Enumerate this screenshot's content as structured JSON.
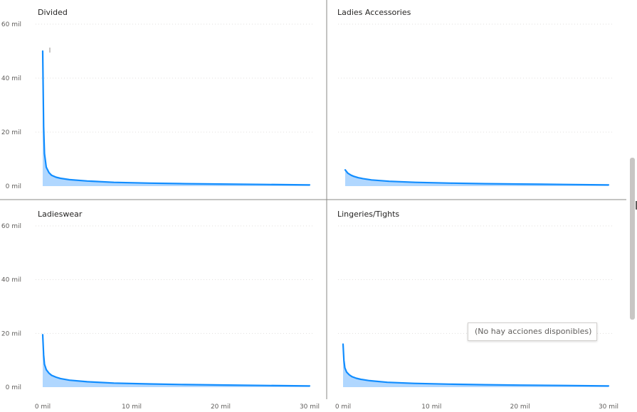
{
  "chart_data": [
    {
      "type": "area",
      "title": "Divided",
      "x_ticks": [
        "0 mil",
        "10 mil",
        "20 mil",
        "30 mil"
      ],
      "y_ticks": [
        "60 mil",
        "40 mil",
        "20 mil",
        "0 mil"
      ],
      "xlim": [
        0,
        30000
      ],
      "ylim": [
        0,
        60000
      ],
      "x": [
        0,
        100,
        200,
        400,
        700,
        1000,
        1500,
        2000,
        3000,
        5000,
        8000,
        12000,
        16000,
        20000,
        25000,
        30000
      ],
      "values": [
        50000,
        22000,
        12000,
        7000,
        5000,
        4000,
        3300,
        2900,
        2400,
        1900,
        1400,
        1100,
        900,
        750,
        600,
        450
      ]
    },
    {
      "type": "area",
      "title": "Ladies Accessories",
      "x_ticks": [
        "0 mil",
        "10 mil",
        "20 mil",
        "30 mil"
      ],
      "y_ticks": [
        "60 mil",
        "40 mil",
        "20 mil",
        "0 mil"
      ],
      "xlim": [
        0,
        30000
      ],
      "ylim": [
        0,
        60000
      ],
      "x": [
        0,
        300,
        700,
        1000,
        1500,
        2000,
        3000,
        5000,
        8000,
        12000,
        16000,
        20000,
        25000,
        30000
      ],
      "values": [
        6000,
        4800,
        4000,
        3600,
        3100,
        2800,
        2300,
        1800,
        1400,
        1100,
        900,
        750,
        600,
        450
      ]
    },
    {
      "type": "area",
      "title": "Ladieswear",
      "x_ticks": [
        "0 mil",
        "10 mil",
        "20 mil",
        "30 mil"
      ],
      "y_ticks": [
        "60 mil",
        "40 mil",
        "20 mil",
        "0 mil"
      ],
      "xlim": [
        0,
        30000
      ],
      "ylim": [
        0,
        60000
      ],
      "x": [
        0,
        100,
        200,
        400,
        700,
        1000,
        1500,
        2000,
        3000,
        5000,
        8000,
        12000,
        16000,
        20000,
        25000,
        30000
      ],
      "values": [
        19500,
        12000,
        8500,
        6500,
        5200,
        4400,
        3700,
        3200,
        2600,
        2000,
        1500,
        1200,
        950,
        800,
        600,
        450
      ]
    },
    {
      "type": "area",
      "title": "Lingeries/Tights",
      "x_ticks": [
        "0 mil",
        "10 mil",
        "20 mil",
        "30 mil"
      ],
      "y_ticks": [
        "60 mil",
        "40 mil",
        "20 mil",
        "0 mil"
      ],
      "xlim": [
        0,
        30000
      ],
      "ylim": [
        0,
        60000
      ],
      "x": [
        0,
        100,
        200,
        400,
        700,
        1000,
        1500,
        2000,
        3000,
        5000,
        8000,
        12000,
        16000,
        20000,
        25000,
        30000
      ],
      "values": [
        16000,
        10000,
        7200,
        5600,
        4600,
        3900,
        3300,
        2900,
        2400,
        1800,
        1400,
        1100,
        900,
        750,
        600,
        450
      ]
    }
  ],
  "tooltip": {
    "text": "(No hay acciones disponibles)"
  },
  "colors": {
    "line": "#118dff",
    "area": "#a7d3ff",
    "grid": "#e1dfdd"
  }
}
